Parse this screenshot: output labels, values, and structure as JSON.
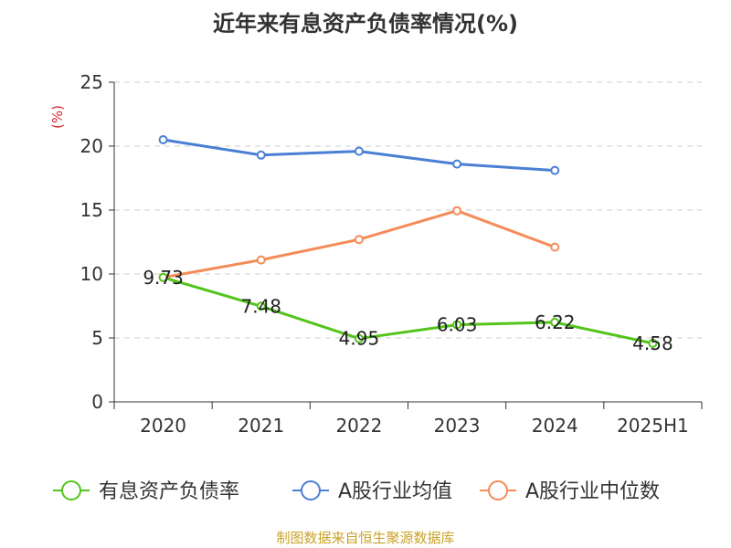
{
  "chart_data": {
    "type": "line",
    "title": "近年来有息资产负债率情况(%)",
    "ylabel": "(%)",
    "xlabel": "",
    "ylim": [
      0,
      25
    ],
    "yticks": [
      0,
      5,
      10,
      15,
      20,
      25
    ],
    "categories": [
      "2020",
      "2021",
      "2022",
      "2023",
      "2024",
      "2025H1"
    ],
    "grid": true,
    "legend_position": "bottom",
    "series": [
      {
        "name": "有息资产负债率",
        "color": "#52c41a",
        "values": [
          9.73,
          7.48,
          4.95,
          6.03,
          6.22,
          4.58
        ],
        "labels": [
          "9.73",
          "7.48",
          "4.95",
          "6.03",
          "6.22",
          "4.58"
        ]
      },
      {
        "name": "A股行业均值",
        "color": "#4a7fd4",
        "values": [
          20.5,
          19.3,
          19.6,
          18.6,
          18.1,
          null
        ]
      },
      {
        "name": "A股行业中位数",
        "color": "#f58b57",
        "values": [
          9.73,
          11.1,
          12.7,
          14.95,
          12.1,
          null
        ]
      }
    ]
  },
  "footer": "制图数据来自恒生聚源数据库"
}
